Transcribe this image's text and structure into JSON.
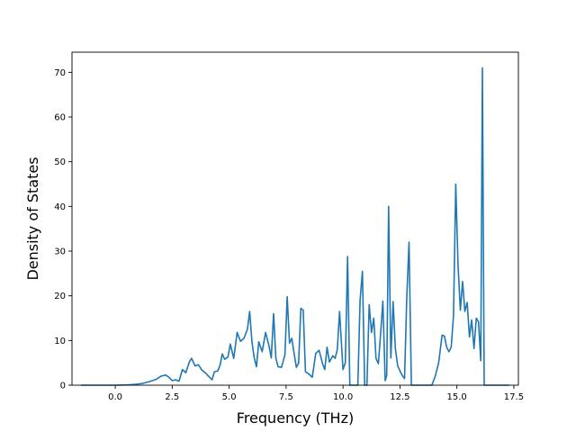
{
  "chart_data": {
    "type": "line",
    "title": "",
    "xlabel": "Frequency (THz)",
    "ylabel": "Density of States",
    "xlim": [
      -1.9,
      17.7
    ],
    "ylim": [
      0,
      74.5
    ],
    "x_ticks": [
      0.0,
      2.5,
      5.0,
      7.5,
      10.0,
      12.5,
      15.0,
      17.5
    ],
    "x_tick_labels": [
      "0.0",
      "2.5",
      "5.0",
      "7.5",
      "10.0",
      "12.5",
      "15.0",
      "17.5"
    ],
    "y_ticks": [
      0,
      10,
      20,
      30,
      40,
      50,
      60,
      70
    ],
    "y_tick_labels": [
      "0",
      "10",
      "20",
      "30",
      "40",
      "50",
      "60",
      "70"
    ],
    "grid": false,
    "legend": "none",
    "colors": {
      "line": "#1f77b4",
      "axes": "#000000",
      "background": "#ffffff"
    },
    "series": [
      {
        "points": [
          [
            -1.5,
            0
          ],
          [
            -1.0,
            0
          ],
          [
            -0.5,
            0
          ],
          [
            0.0,
            0
          ],
          [
            0.3,
            0.05
          ],
          [
            0.6,
            0.1
          ],
          [
            0.9,
            0.2
          ],
          [
            1.2,
            0.4
          ],
          [
            1.5,
            0.8
          ],
          [
            1.8,
            1.3
          ],
          [
            2.0,
            2.0
          ],
          [
            2.2,
            2.3
          ],
          [
            2.35,
            1.8
          ],
          [
            2.5,
            1.0
          ],
          [
            2.65,
            1.2
          ],
          [
            2.8,
            0.9
          ],
          [
            2.95,
            3.5
          ],
          [
            3.1,
            2.8
          ],
          [
            3.25,
            5.2
          ],
          [
            3.35,
            6.0
          ],
          [
            3.5,
            4.3
          ],
          [
            3.65,
            4.6
          ],
          [
            3.8,
            3.4
          ],
          [
            3.95,
            2.8
          ],
          [
            4.1,
            2.0
          ],
          [
            4.25,
            1.2
          ],
          [
            4.35,
            3.0
          ],
          [
            4.5,
            3.2
          ],
          [
            4.6,
            4.5
          ],
          [
            4.7,
            7.0
          ],
          [
            4.8,
            5.8
          ],
          [
            4.95,
            6.3
          ],
          [
            5.05,
            9.2
          ],
          [
            5.2,
            6.0
          ],
          [
            5.35,
            11.8
          ],
          [
            5.5,
            9.8
          ],
          [
            5.65,
            10.5
          ],
          [
            5.8,
            12.5
          ],
          [
            5.9,
            16.5
          ],
          [
            6.0,
            9.8
          ],
          [
            6.1,
            6.2
          ],
          [
            6.2,
            4.1
          ],
          [
            6.3,
            9.7
          ],
          [
            6.45,
            7.5
          ],
          [
            6.6,
            11.8
          ],
          [
            6.75,
            8.8
          ],
          [
            6.85,
            6.1
          ],
          [
            6.95,
            16.0
          ],
          [
            7.05,
            6.1
          ],
          [
            7.15,
            4.1
          ],
          [
            7.3,
            4.0
          ],
          [
            7.45,
            6.8
          ],
          [
            7.55,
            19.8
          ],
          [
            7.65,
            9.4
          ],
          [
            7.75,
            10.5
          ],
          [
            7.85,
            7.2
          ],
          [
            7.95,
            4.0
          ],
          [
            8.05,
            5.0
          ],
          [
            8.15,
            17.2
          ],
          [
            8.25,
            16.8
          ],
          [
            8.35,
            3.0
          ],
          [
            8.5,
            2.5
          ],
          [
            8.65,
            1.8
          ],
          [
            8.8,
            7.1
          ],
          [
            8.95,
            7.8
          ],
          [
            9.1,
            4.8
          ],
          [
            9.2,
            3.5
          ],
          [
            9.3,
            8.5
          ],
          [
            9.4,
            5.2
          ],
          [
            9.55,
            6.6
          ],
          [
            9.65,
            6.0
          ],
          [
            9.75,
            8.0
          ],
          [
            9.85,
            16.5
          ],
          [
            10.0,
            3.5
          ],
          [
            10.1,
            5.0
          ],
          [
            10.2,
            28.8
          ],
          [
            10.3,
            0
          ],
          [
            10.5,
            0
          ],
          [
            10.65,
            0
          ],
          [
            10.75,
            19.0
          ],
          [
            10.85,
            25.5
          ],
          [
            10.95,
            0
          ],
          [
            11.05,
            0
          ],
          [
            11.15,
            18.0
          ],
          [
            11.25,
            11.8
          ],
          [
            11.35,
            15.0
          ],
          [
            11.45,
            6.0
          ],
          [
            11.55,
            4.8
          ],
          [
            11.65,
            11.5
          ],
          [
            11.75,
            18.8
          ],
          [
            11.85,
            1.0
          ],
          [
            11.92,
            2.2
          ],
          [
            12.0,
            40.0
          ],
          [
            12.1,
            6.1
          ],
          [
            12.2,
            18.7
          ],
          [
            12.3,
            8.2
          ],
          [
            12.4,
            4.3
          ],
          [
            12.5,
            3.2
          ],
          [
            12.6,
            2.2
          ],
          [
            12.7,
            1.5
          ],
          [
            12.8,
            19.8
          ],
          [
            12.9,
            32.0
          ],
          [
            13.0,
            0
          ],
          [
            13.5,
            0
          ],
          [
            13.9,
            0
          ],
          [
            14.05,
            2.0
          ],
          [
            14.2,
            5.0
          ],
          [
            14.35,
            11.2
          ],
          [
            14.45,
            11.0
          ],
          [
            14.55,
            8.5
          ],
          [
            14.65,
            7.5
          ],
          [
            14.75,
            8.5
          ],
          [
            14.85,
            15.5
          ],
          [
            14.95,
            45.0
          ],
          [
            15.05,
            27.0
          ],
          [
            15.15,
            16.8
          ],
          [
            15.25,
            23.2
          ],
          [
            15.35,
            16.5
          ],
          [
            15.45,
            18.5
          ],
          [
            15.55,
            10.8
          ],
          [
            15.65,
            14.6
          ],
          [
            15.75,
            8.2
          ],
          [
            15.85,
            15.0
          ],
          [
            15.95,
            14.2
          ],
          [
            16.05,
            5.5
          ],
          [
            16.12,
            71.0
          ],
          [
            16.2,
            0
          ],
          [
            16.5,
            0
          ],
          [
            17.0,
            0
          ],
          [
            17.3,
            0
          ]
        ]
      }
    ]
  }
}
